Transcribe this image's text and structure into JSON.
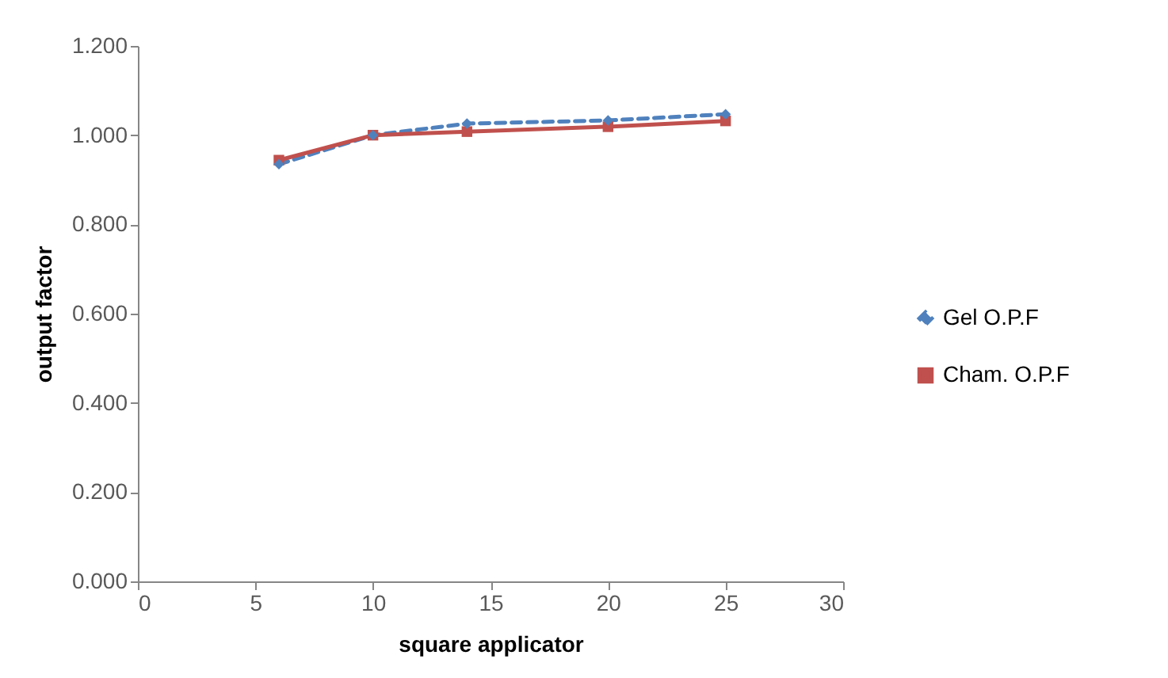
{
  "chart_data": {
    "type": "line",
    "xlabel": "square applicator",
    "ylabel": "output factor",
    "x": [
      6,
      10,
      14,
      20,
      25
    ],
    "series": [
      {
        "name": "Gel O.P.F",
        "color": "#4f81bd",
        "values": [
          0.935,
          1.0,
          1.026,
          1.033,
          1.047
        ],
        "marker": "diamond",
        "line_style": "dashed"
      },
      {
        "name": "Cham. O.P.F",
        "color": "#c0504d",
        "values": [
          0.944,
          1.0,
          1.008,
          1.019,
          1.032
        ],
        "marker": "square",
        "line_style": "solid"
      }
    ],
    "xlim": [
      0,
      30
    ],
    "xticks": [
      0,
      5,
      10,
      15,
      20,
      25,
      30
    ],
    "ylim": [
      0,
      1.2
    ],
    "yticks": [
      {
        "value": 0,
        "label": "0.000"
      },
      {
        "value": 0.2,
        "label": "0.200"
      },
      {
        "value": 0.4,
        "label": "0.400"
      },
      {
        "value": 0.6,
        "label": "0.600"
      },
      {
        "value": 0.8,
        "label": "0.800"
      },
      {
        "value": 1.0,
        "label": "1.000"
      },
      {
        "value": 1.2,
        "label": "1.200"
      }
    ],
    "grid": false,
    "legend": "right"
  }
}
